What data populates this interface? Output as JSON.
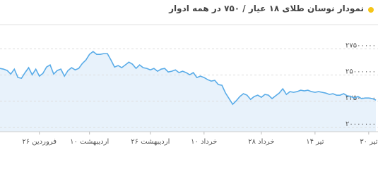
{
  "chart_data": {
    "type": "line",
    "title": "نمودار نوسان طلای ۱۸ عیار / ۷۵۰ در همه ادوار",
    "color": "#5aace8",
    "fill_color": "#e8f2fb",
    "grid": true,
    "values": [
      25630000,
      25560000,
      25430000,
      25090000,
      25560000,
      24760000,
      24690000,
      25230000,
      25700000,
      25020000,
      25560000,
      24890000,
      25160000,
      25760000,
      25960000,
      25090000,
      25430000,
      25560000,
      24890000,
      25430000,
      25700000,
      25490000,
      25630000,
      26100000,
      26430000,
      26970000,
      27240000,
      26970000,
      26970000,
      27040000,
      27040000,
      26430000,
      25760000,
      25900000,
      25700000,
      25960000,
      26230000,
      26030000,
      25630000,
      25960000,
      25700000,
      25630000,
      25490000,
      25630000,
      25360000,
      25560000,
      25630000,
      25290000,
      25360000,
      25490000,
      25230000,
      25360000,
      25230000,
      25020000,
      25230000,
      24760000,
      24890000,
      24760000,
      24560000,
      24420000,
      24490000,
      24090000,
      24020000,
      23280000,
      22750000,
      22210000,
      22550000,
      22950000,
      23220000,
      23080000,
      22680000,
      22950000,
      23080000,
      22880000,
      23150000,
      23080000,
      22750000,
      23020000,
      23280000,
      23690000,
      23150000,
      23420000,
      23350000,
      23420000,
      23550000,
      23490000,
      23550000,
      23420000,
      23350000,
      23420000,
      23350000,
      23280000,
      23150000,
      23220000,
      23080000,
      23080000,
      23220000,
      23020000,
      22950000,
      22810000,
      22950000,
      22750000,
      22810000,
      22810000,
      22750000,
      22610000
    ],
    "xlim": [
      0,
      105
    ],
    "xticks": [
      {
        "value": 11,
        "label": "۲۶ فروردین"
      },
      {
        "value": 25,
        "label": "۱۰ اردیبهشت"
      },
      {
        "value": 42,
        "label": "۲۶ اردیبهشت"
      },
      {
        "value": 57,
        "label": "۱۰ خرداد"
      },
      {
        "value": 73,
        "label": "۲۸ خرداد"
      },
      {
        "value": 88,
        "label": "۱۴ تیر"
      },
      {
        "value": 103,
        "label": "۳۰ تیر"
      }
    ],
    "ylim": [
      19600000,
      29800000
    ],
    "yticks": [
      {
        "value": 20000000,
        "label": "۲۰۰۰۰۰۰۰"
      },
      {
        "value": 22500000,
        "label": "۲۲۵۰۰۰۰۰"
      },
      {
        "value": 25000000,
        "label": "۲۵۰۰۰۰۰۰"
      },
      {
        "value": 27500000,
        "label": "۲۷۵۰۰۰۰۰"
      }
    ]
  }
}
